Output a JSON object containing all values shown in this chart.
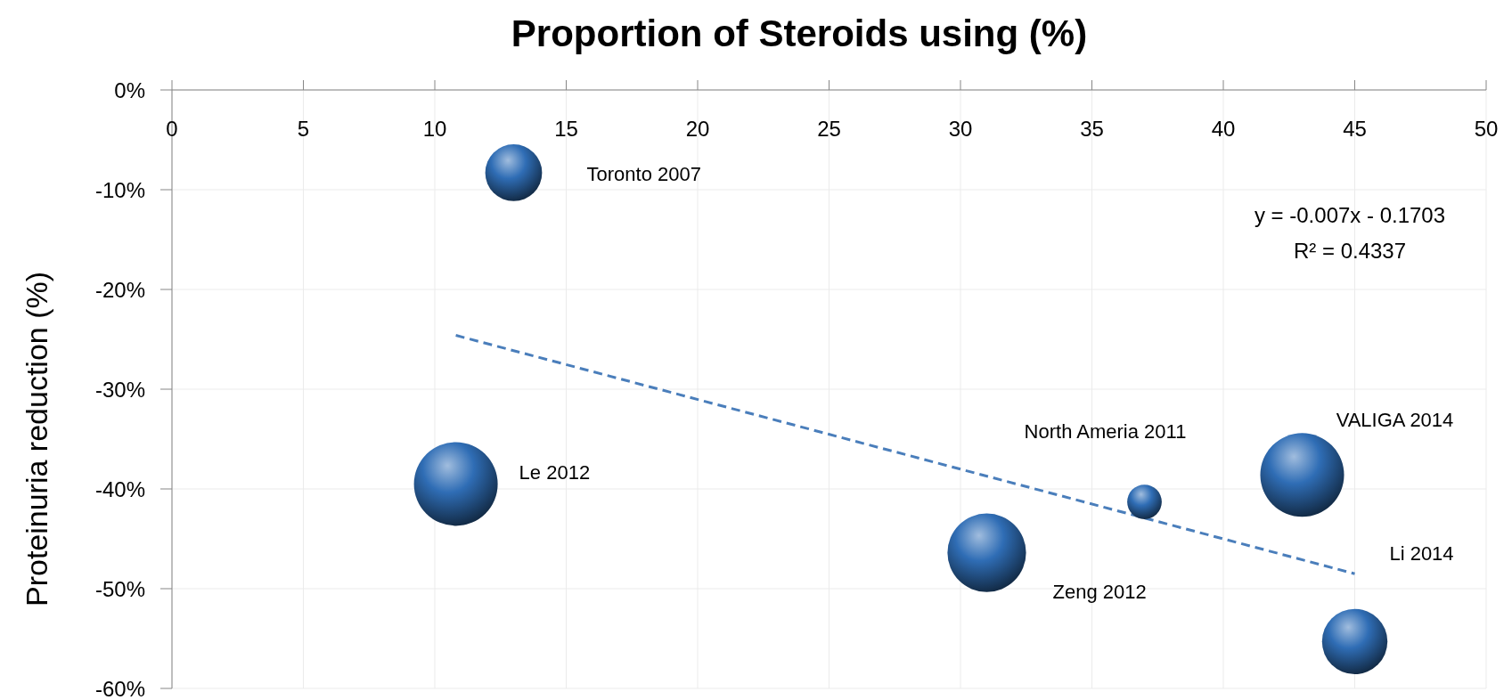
{
  "chart_data": {
    "type": "bubble",
    "title": "Proportion of Steroids using (%)",
    "ylabel": "Proteinuria reduction (%)",
    "xlim": [
      0,
      50
    ],
    "xticks": [
      0,
      5,
      10,
      15,
      20,
      25,
      30,
      35,
      40,
      45,
      50
    ],
    "ylim": [
      -60,
      0
    ],
    "yticks": [
      {
        "value": 0,
        "label": "0%"
      },
      {
        "value": -10,
        "label": "-10%"
      },
      {
        "value": -20,
        "label": "-20%"
      },
      {
        "value": -30,
        "label": "-30%"
      },
      {
        "value": -40,
        "label": "-40%"
      },
      {
        "value": -50,
        "label": "-50%"
      },
      {
        "value": -60,
        "label": "-60%"
      }
    ],
    "grid": true,
    "annotations": [
      "y = -0.007x - 0.1703",
      "R² = 0.4337"
    ],
    "series": [
      {
        "name": "Toronto 2007",
        "color": "#2f6db5",
        "x": [
          13
        ],
        "values": [
          -8.3
        ],
        "sizes": [
          0.46
        ]
      },
      {
        "name": "Le 2012",
        "color": "#2f6db5",
        "x": [
          10.8
        ],
        "values": [
          -39.5
        ],
        "sizes": [
          1
        ]
      },
      {
        "name": "Zeng 2012",
        "color": "#2f6db5",
        "x": [
          31
        ],
        "values": [
          -46.4
        ],
        "sizes": [
          0.88
        ]
      },
      {
        "name": "North Ameria 2011",
        "color": "#2f6db5",
        "x": [
          37
        ],
        "values": [
          -41.3
        ],
        "sizes": [
          0.17
        ]
      },
      {
        "name": "VALIGA 2014",
        "color": "#2f6db5",
        "x": [
          43
        ],
        "values": [
          -38.6
        ],
        "sizes": [
          1
        ]
      },
      {
        "name": "Li 2014",
        "color": "#2f6db5",
        "x": [
          45
        ],
        "values": [
          -55.3
        ],
        "sizes": [
          0.61
        ]
      },
      {
        "type": "line",
        "color": "#4a7ebb",
        "line_style": "dashed",
        "x": [
          10.8,
          45
        ],
        "values": [
          -24.6,
          -48.5
        ]
      }
    ]
  }
}
